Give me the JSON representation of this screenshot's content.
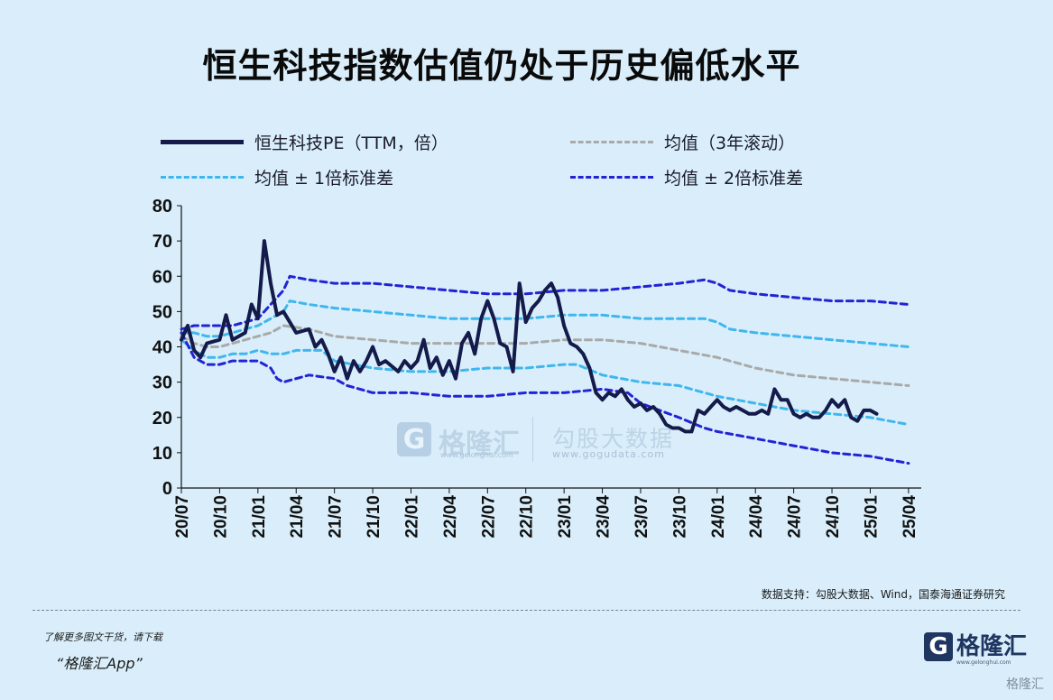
{
  "title": "恒生科技指数估值仍处于历史偏低水平",
  "legend": {
    "pe": "恒生科技PE（TTM，倍）",
    "mean": "均值（3年滚动）",
    "sd1": "均值 ± 1倍标准差",
    "sd2": "均值 ± 2倍标准差"
  },
  "source": "数据支持：勾股大数据、Wind，国泰海通证券研究",
  "promo": {
    "line1": "了解更多图文干货，请下载",
    "line2": "“格隆汇App”"
  },
  "logo": {
    "mark": "G",
    "name": "格隆汇",
    "url": "www.gelonghui.com"
  },
  "corner_watermark": "格隆汇",
  "watermarks": {
    "brand1": "格隆汇",
    "url1": "www.gelonghui.com",
    "brand2": "勾股大数据",
    "url2": "www.gogudata.com"
  },
  "colors": {
    "pe": "#141a4a",
    "mean": "#a9a9a9",
    "sd1": "#3fb7ee",
    "sd2": "#2323d6",
    "background": "#d9eefa"
  },
  "chart_data": {
    "type": "line",
    "title": "恒生科技指数估值仍处于历史偏低水平",
    "xlabel": "",
    "ylabel": "",
    "ylim": [
      0,
      80
    ],
    "yticks": [
      0,
      10,
      20,
      30,
      40,
      50,
      60,
      70,
      80
    ],
    "xlim": [
      0,
      58
    ],
    "x_unit": "months since 2020-07",
    "xticks": [
      {
        "x": 0,
        "label": "20/07"
      },
      {
        "x": 3,
        "label": "20/10"
      },
      {
        "x": 6,
        "label": "21/01"
      },
      {
        "x": 9,
        "label": "21/04"
      },
      {
        "x": 12,
        "label": "21/07"
      },
      {
        "x": 15,
        "label": "21/10"
      },
      {
        "x": 18,
        "label": "22/01"
      },
      {
        "x": 21,
        "label": "22/04"
      },
      {
        "x": 24,
        "label": "22/07"
      },
      {
        "x": 27,
        "label": "22/10"
      },
      {
        "x": 30,
        "label": "23/01"
      },
      {
        "x": 33,
        "label": "23/04"
      },
      {
        "x": 36,
        "label": "23/07"
      },
      {
        "x": 39,
        "label": "23/10"
      },
      {
        "x": 42,
        "label": "24/01"
      },
      {
        "x": 45,
        "label": "24/04"
      },
      {
        "x": 48,
        "label": "24/07"
      },
      {
        "x": 51,
        "label": "24/10"
      },
      {
        "x": 54,
        "label": "25/01"
      },
      {
        "x": 57,
        "label": "25/04"
      }
    ],
    "series": [
      {
        "name": "恒生科技PE（TTM，倍）",
        "style": "solid-thick",
        "points": [
          [
            0,
            42
          ],
          [
            0.5,
            46
          ],
          [
            1,
            39
          ],
          [
            1.5,
            37
          ],
          [
            2,
            41
          ],
          [
            3,
            42
          ],
          [
            3.5,
            49
          ],
          [
            4,
            42
          ],
          [
            5,
            44
          ],
          [
            5.5,
            52
          ],
          [
            6,
            48
          ],
          [
            6.5,
            70
          ],
          [
            7,
            58
          ],
          [
            7.5,
            49
          ],
          [
            8,
            50
          ],
          [
            8.5,
            47
          ],
          [
            9,
            44
          ],
          [
            10,
            45
          ],
          [
            10.5,
            40
          ],
          [
            11,
            42
          ],
          [
            11.5,
            38
          ],
          [
            12,
            33
          ],
          [
            12.5,
            37
          ],
          [
            13,
            31
          ],
          [
            13.5,
            36
          ],
          [
            14,
            33
          ],
          [
            14.5,
            36
          ],
          [
            15,
            40
          ],
          [
            15.5,
            35
          ],
          [
            16,
            36
          ],
          [
            17,
            33
          ],
          [
            17.5,
            36
          ],
          [
            18,
            34
          ],
          [
            18.5,
            36
          ],
          [
            19,
            42
          ],
          [
            19.5,
            34
          ],
          [
            20,
            37
          ],
          [
            20.5,
            32
          ],
          [
            21,
            36
          ],
          [
            21.5,
            31
          ],
          [
            22,
            41
          ],
          [
            22.5,
            44
          ],
          [
            23,
            38
          ],
          [
            23.5,
            48
          ],
          [
            24,
            53
          ],
          [
            24.5,
            48
          ],
          [
            25,
            41
          ],
          [
            25.5,
            40
          ],
          [
            26,
            33
          ],
          [
            26.5,
            58
          ],
          [
            27,
            47
          ],
          [
            27.5,
            51
          ],
          [
            28,
            53
          ],
          [
            28.5,
            56
          ],
          [
            29,
            58
          ],
          [
            29.5,
            54
          ],
          [
            30,
            46
          ],
          [
            30.5,
            41
          ],
          [
            31,
            40
          ],
          [
            31.5,
            38
          ],
          [
            32,
            34
          ],
          [
            32.5,
            27
          ],
          [
            33,
            25
          ],
          [
            33.5,
            27
          ],
          [
            34,
            26
          ],
          [
            34.5,
            28
          ],
          [
            35,
            25
          ],
          [
            35.5,
            23
          ],
          [
            36,
            24
          ],
          [
            36.5,
            22
          ],
          [
            37,
            23
          ],
          [
            37.5,
            21
          ],
          [
            38,
            18
          ],
          [
            38.5,
            17
          ],
          [
            39,
            17
          ],
          [
            39.5,
            16
          ],
          [
            40,
            16
          ],
          [
            40.5,
            22
          ],
          [
            41,
            21
          ],
          [
            41.5,
            23
          ],
          [
            42,
            25
          ],
          [
            42.5,
            23
          ],
          [
            43,
            22
          ],
          [
            43.5,
            23
          ],
          [
            44,
            22
          ],
          [
            44.5,
            21
          ],
          [
            45,
            21
          ],
          [
            45.5,
            22
          ],
          [
            46,
            21
          ],
          [
            46.5,
            28
          ],
          [
            47,
            25
          ],
          [
            47.5,
            25
          ],
          [
            48,
            21
          ],
          [
            48.5,
            20
          ],
          [
            49,
            21
          ],
          [
            49.5,
            20
          ],
          [
            50,
            20
          ],
          [
            50.5,
            22
          ],
          [
            51,
            25
          ],
          [
            51.5,
            23
          ],
          [
            52,
            25
          ],
          [
            52.5,
            20
          ],
          [
            53,
            19
          ],
          [
            53.5,
            22
          ],
          [
            54,
            22
          ],
          [
            54.5,
            21
          ]
        ]
      },
      {
        "name": "均值（3年滚动）",
        "style": "dashed-gray",
        "points": [
          [
            0,
            43
          ],
          [
            1,
            41
          ],
          [
            2,
            40
          ],
          [
            3,
            40
          ],
          [
            4,
            41
          ],
          [
            5,
            42
          ],
          [
            6,
            43
          ],
          [
            7,
            44
          ],
          [
            8,
            46
          ],
          [
            10,
            45
          ],
          [
            12,
            43
          ],
          [
            15,
            42
          ],
          [
            18,
            41
          ],
          [
            21,
            41
          ],
          [
            24,
            41
          ],
          [
            27,
            41
          ],
          [
            30,
            42
          ],
          [
            33,
            42
          ],
          [
            36,
            41
          ],
          [
            39,
            39
          ],
          [
            42,
            37
          ],
          [
            45,
            34
          ],
          [
            48,
            32
          ],
          [
            51,
            31
          ],
          [
            54,
            30
          ],
          [
            57,
            29
          ]
        ]
      },
      {
        "name": "均值 + 1倍标准差",
        "style": "dashed-light",
        "points": [
          [
            0,
            44
          ],
          [
            1,
            44
          ],
          [
            2,
            43
          ],
          [
            3,
            43
          ],
          [
            4,
            44
          ],
          [
            5,
            45
          ],
          [
            6,
            46
          ],
          [
            7,
            48
          ],
          [
            8,
            50
          ],
          [
            8.5,
            53
          ],
          [
            10,
            52
          ],
          [
            12,
            51
          ],
          [
            15,
            50
          ],
          [
            18,
            49
          ],
          [
            21,
            48
          ],
          [
            24,
            48
          ],
          [
            27,
            48
          ],
          [
            30,
            49
          ],
          [
            33,
            49
          ],
          [
            36,
            48
          ],
          [
            39,
            48
          ],
          [
            41,
            48
          ],
          [
            42,
            47
          ],
          [
            43,
            45
          ],
          [
            45,
            44
          ],
          [
            48,
            43
          ],
          [
            51,
            42
          ],
          [
            54,
            41
          ],
          [
            57,
            40
          ]
        ]
      },
      {
        "name": "均值 − 1倍标准差",
        "style": "dashed-light",
        "points": [
          [
            0,
            42
          ],
          [
            1,
            39
          ],
          [
            2,
            37
          ],
          [
            3,
            37
          ],
          [
            4,
            38
          ],
          [
            5,
            38
          ],
          [
            6,
            39
          ],
          [
            7,
            38
          ],
          [
            8,
            38
          ],
          [
            9,
            39
          ],
          [
            10,
            39
          ],
          [
            11,
            39
          ],
          [
            12,
            36
          ],
          [
            15,
            34
          ],
          [
            18,
            33
          ],
          [
            21,
            33
          ],
          [
            24,
            34
          ],
          [
            27,
            34
          ],
          [
            30,
            35
          ],
          [
            31,
            35
          ],
          [
            33,
            32
          ],
          [
            36,
            30
          ],
          [
            39,
            29
          ],
          [
            41,
            27
          ],
          [
            42,
            26
          ],
          [
            45,
            24
          ],
          [
            48,
            22
          ],
          [
            51,
            21
          ],
          [
            54,
            20
          ],
          [
            57,
            18
          ]
        ]
      },
      {
        "name": "均值 + 2倍标准差",
        "style": "dashed-dark",
        "points": [
          [
            0,
            45
          ],
          [
            1,
            46
          ],
          [
            2,
            46
          ],
          [
            3,
            46
          ],
          [
            4,
            46
          ],
          [
            5,
            47
          ],
          [
            6,
            48
          ],
          [
            7,
            52
          ],
          [
            8,
            56
          ],
          [
            8.5,
            60
          ],
          [
            10,
            59
          ],
          [
            12,
            58
          ],
          [
            15,
            58
          ],
          [
            18,
            57
          ],
          [
            21,
            56
          ],
          [
            24,
            55
          ],
          [
            27,
            55
          ],
          [
            30,
            56
          ],
          [
            33,
            56
          ],
          [
            36,
            57
          ],
          [
            39,
            58
          ],
          [
            41,
            59
          ],
          [
            42,
            58
          ],
          [
            43,
            56
          ],
          [
            45,
            55
          ],
          [
            48,
            54
          ],
          [
            51,
            53
          ],
          [
            54,
            53
          ],
          [
            57,
            52
          ]
        ]
      },
      {
        "name": "均值 − 2倍标准差",
        "style": "dashed-dark",
        "points": [
          [
            0,
            44
          ],
          [
            1,
            37
          ],
          [
            2,
            35
          ],
          [
            3,
            35
          ],
          [
            4,
            36
          ],
          [
            5,
            36
          ],
          [
            6,
            36
          ],
          [
            7,
            34
          ],
          [
            7.5,
            31
          ],
          [
            8,
            30
          ],
          [
            10,
            32
          ],
          [
            12,
            31
          ],
          [
            13,
            29
          ],
          [
            14,
            28
          ],
          [
            15,
            27
          ],
          [
            18,
            27
          ],
          [
            21,
            26
          ],
          [
            24,
            26
          ],
          [
            27,
            27
          ],
          [
            30,
            27
          ],
          [
            33,
            28
          ],
          [
            35,
            27
          ],
          [
            36,
            24
          ],
          [
            39,
            20
          ],
          [
            41,
            17
          ],
          [
            42,
            16
          ],
          [
            45,
            14
          ],
          [
            48,
            12
          ],
          [
            51,
            10
          ],
          [
            54,
            9
          ],
          [
            57,
            7
          ]
        ]
      }
    ]
  }
}
